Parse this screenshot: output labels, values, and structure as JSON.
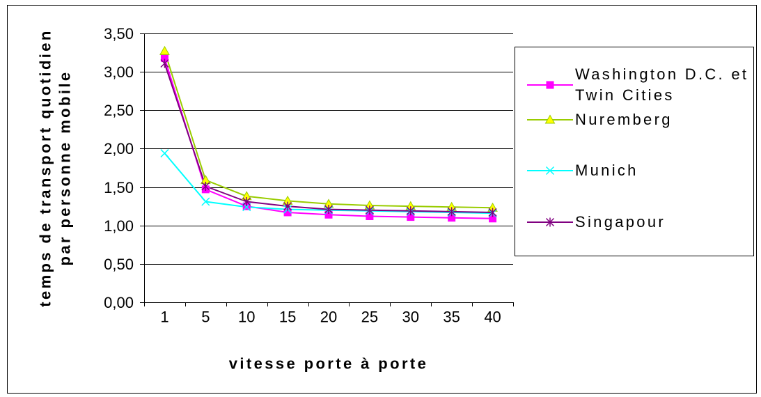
{
  "chart_data": {
    "type": "line",
    "categories": [
      "1",
      "5",
      "10",
      "15",
      "20",
      "25",
      "30",
      "35",
      "40"
    ],
    "series": [
      {
        "name": "Washington D.C. et Twin Cities",
        "color": "#FF00FF",
        "marker": "square",
        "marker_fill": "#FF00FF",
        "values": [
          3.18,
          1.47,
          1.25,
          1.17,
          1.14,
          1.12,
          1.11,
          1.1,
          1.09
        ]
      },
      {
        "name": "Nuremberg",
        "color": "#99CC00",
        "marker": "triangle",
        "marker_fill": "#FFFF00",
        "values": [
          3.27,
          1.59,
          1.38,
          1.32,
          1.28,
          1.26,
          1.25,
          1.24,
          1.23
        ]
      },
      {
        "name": "Munich",
        "color": "#00FFFF",
        "marker": "cross",
        "marker_fill": "#00FFFF",
        "values": [
          1.94,
          1.31,
          1.24,
          1.21,
          1.2,
          1.19,
          1.18,
          1.17,
          1.16
        ]
      },
      {
        "name": "Singapour",
        "color": "#800080",
        "marker": "asterisk",
        "marker_fill": "#800080",
        "values": [
          3.11,
          1.51,
          1.31,
          1.25,
          1.21,
          1.2,
          1.19,
          1.18,
          1.17
        ]
      }
    ],
    "xlabel": "vitesse porte à porte",
    "ylabel": [
      "temps de transport quotidien",
      "par personne mobile"
    ],
    "ylim": [
      0,
      3.5
    ],
    "ytick_step": 0.5,
    "ytick_labels": [
      "0,00",
      "0,50",
      "1,00",
      "1,50",
      "2,00",
      "2,50",
      "3,00",
      "3,50"
    ],
    "grid": true,
    "legend": "right"
  }
}
